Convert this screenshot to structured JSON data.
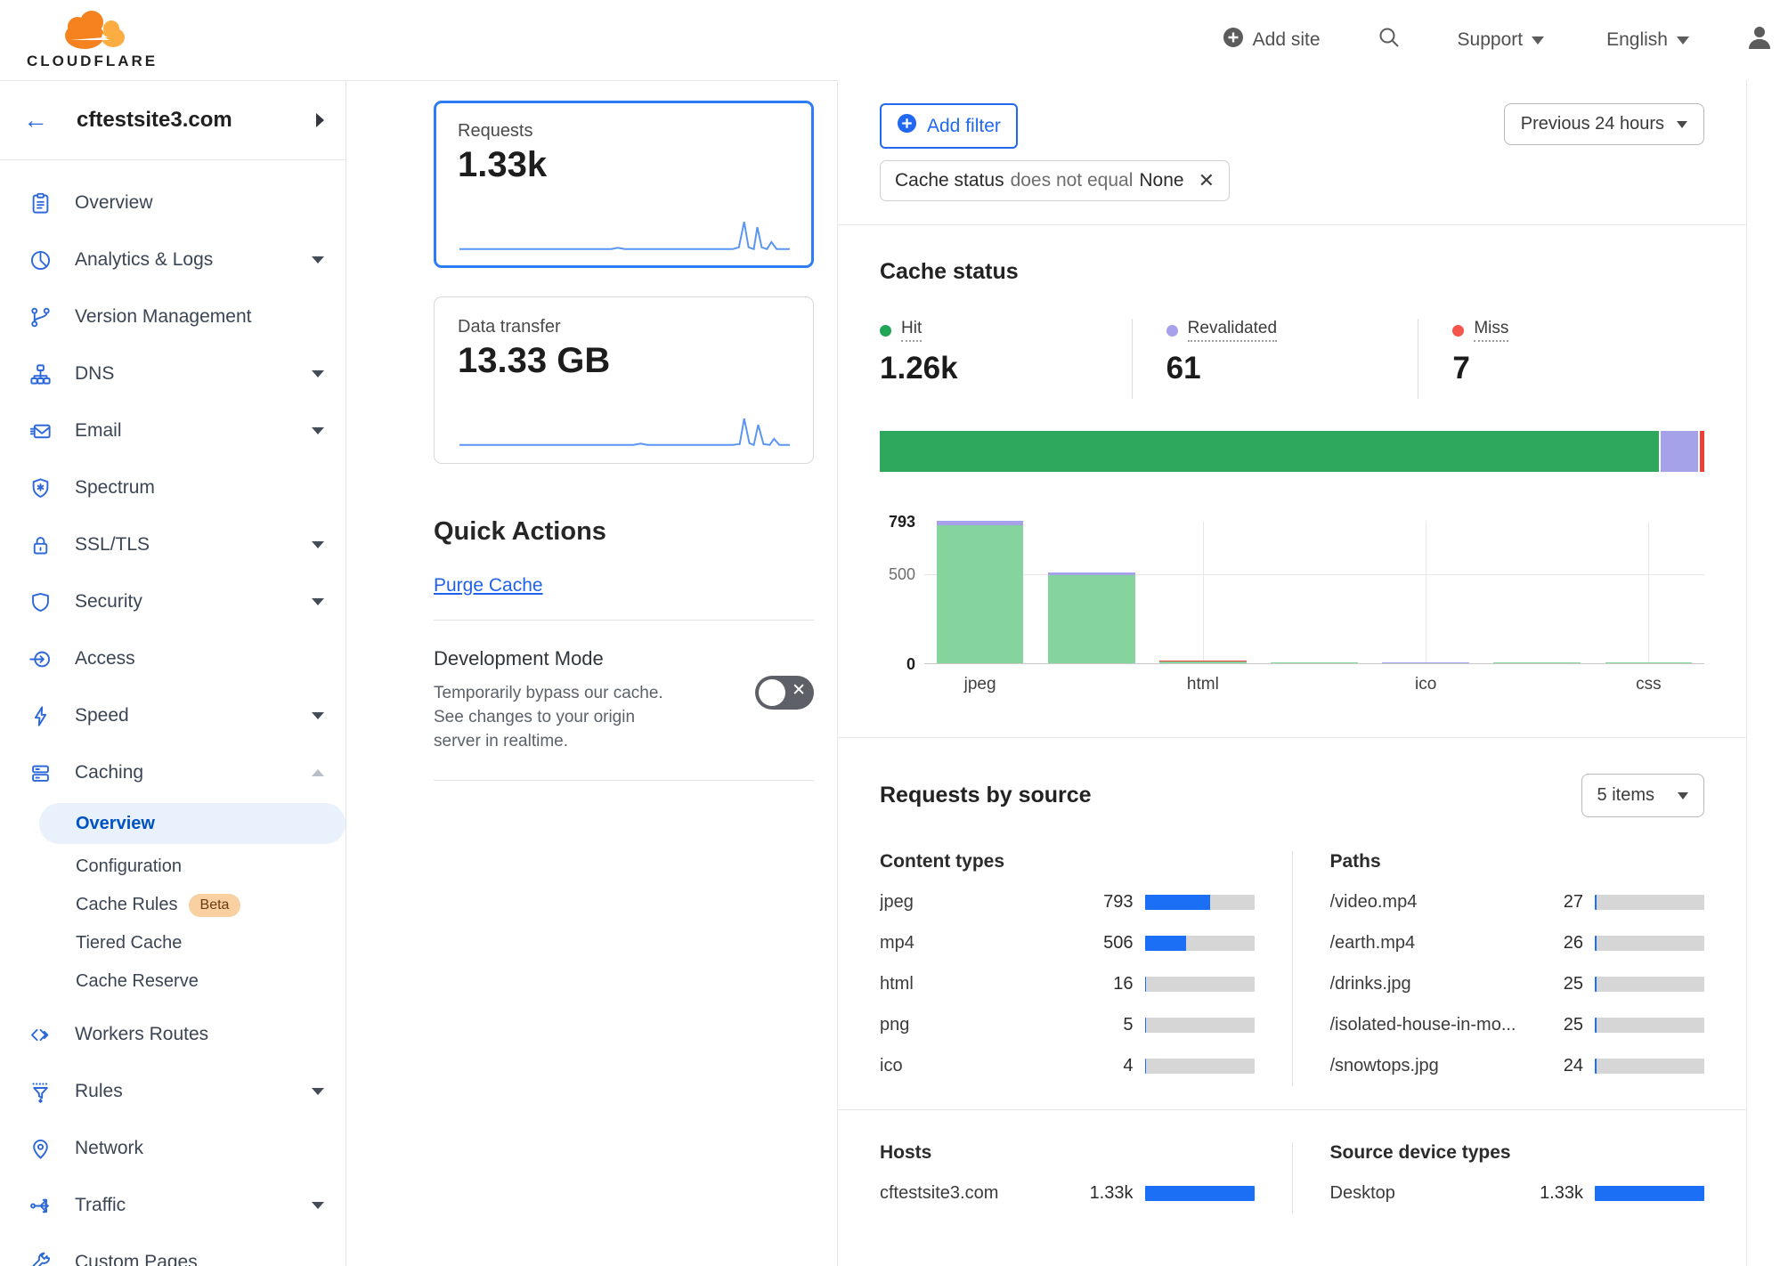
{
  "colors": {
    "accent": "#2268f0",
    "bar_blue": "#1a6ff5",
    "nav_icon": "#2c68d9",
    "selected_text": "#0051c3",
    "selected_bg": "#e8f1fc",
    "green": "#2da85c",
    "chart_green": "#85d49d",
    "purple": "#a5a2e9",
    "red": "#ee3f35",
    "hit_dot": "#21a657",
    "reval_dot": "#a5a2e9",
    "miss_dot": "#f2564d",
    "beta_bg": "#f8d0a2",
    "beta_text": "#6b3d10",
    "logo_orange": "#f6821f",
    "logo_light_orange": "#fbad41"
  },
  "header": {
    "logo_text": "CLOUDFLARE",
    "add_site_label": "Add site",
    "support_label": "Support",
    "language_label": "English"
  },
  "sidebar": {
    "site": "cftestsite3.com",
    "items": [
      {
        "label": "Overview",
        "icon": "clipboard-icon",
        "chevron": "none"
      },
      {
        "label": "Analytics & Logs",
        "icon": "pie-chart-icon",
        "chevron": "down"
      },
      {
        "label": "Version Management",
        "icon": "branch-icon",
        "chevron": "none"
      },
      {
        "label": "DNS",
        "icon": "hierarchy-icon",
        "chevron": "down"
      },
      {
        "label": "Email",
        "icon": "email-icon",
        "chevron": "down"
      },
      {
        "label": "Spectrum",
        "icon": "shield-badge-icon",
        "chevron": "none"
      },
      {
        "label": "SSL/TLS",
        "icon": "lock-icon",
        "chevron": "down"
      },
      {
        "label": "Security",
        "icon": "shield-icon",
        "chevron": "down"
      },
      {
        "label": "Access",
        "icon": "access-icon",
        "chevron": "none"
      },
      {
        "label": "Speed",
        "icon": "lightning-icon",
        "chevron": "down"
      },
      {
        "label": "Caching",
        "icon": "server-icon",
        "chevron": "up",
        "expanded": true,
        "children": [
          {
            "label": "Overview",
            "active": true
          },
          {
            "label": "Configuration"
          },
          {
            "label": "Cache Rules",
            "badge": "Beta"
          },
          {
            "label": "Tiered Cache"
          },
          {
            "label": "Cache Reserve"
          }
        ]
      },
      {
        "label": "Workers Routes",
        "icon": "code-brackets-icon",
        "chevron": "none"
      },
      {
        "label": "Rules",
        "icon": "funnel-icon",
        "chevron": "down"
      },
      {
        "label": "Network",
        "icon": "map-pin-icon",
        "chevron": "none"
      },
      {
        "label": "Traffic",
        "icon": "traffic-split-icon",
        "chevron": "down"
      },
      {
        "label": "Custom Pages",
        "icon": "wrench-icon",
        "chevron": "none"
      }
    ]
  },
  "metrics": {
    "requests": {
      "label": "Requests",
      "value": "1.33k"
    },
    "data_transfer": {
      "label": "Data transfer",
      "value": "13.33 GB"
    }
  },
  "quick_actions": {
    "title": "Quick Actions",
    "purge_cache_label": "Purge Cache",
    "dev_mode_title": "Development Mode",
    "dev_mode_desc": "Temporarily bypass our cache. See changes to your origin server in realtime."
  },
  "filters": {
    "add_filter_label": "Add filter",
    "chip": {
      "field": "Cache status",
      "operator": "does not equal",
      "value": "None"
    },
    "time_range": "Previous 24 hours"
  },
  "cache_status": {
    "title": "Cache status",
    "stats": [
      {
        "label": "Hit",
        "value": "1.26k",
        "num": 1260,
        "color": "#21a657",
        "seg_color": "#2da85c"
      },
      {
        "label": "Revalidated",
        "value": "61",
        "num": 61,
        "color": "#a5a2e9",
        "seg_color": "#a5a2e9"
      },
      {
        "label": "Miss",
        "value": "7",
        "num": 7,
        "color": "#f2564d",
        "seg_color": "#ee3f35"
      }
    ]
  },
  "chart_data": {
    "type": "bar",
    "stacked": true,
    "ylim": [
      0,
      793
    ],
    "yticks": [
      {
        "label": "793",
        "value": 793
      },
      {
        "label": "500",
        "value": 500
      },
      {
        "label": "0",
        "value": 0
      }
    ],
    "xtick_labels": [
      "jpeg",
      "",
      "html",
      "",
      "ico",
      "",
      "css"
    ],
    "slots": [
      {
        "label": "jpeg",
        "hit": 770,
        "revalidated": 23,
        "miss": 0
      },
      {
        "label": "",
        "hit": 490,
        "revalidated": 16,
        "miss": 0
      },
      {
        "label": "html",
        "hit": 9,
        "revalidated": 0,
        "miss": 7
      },
      {
        "label": "",
        "hit": 5,
        "revalidated": 0,
        "miss": 0
      },
      {
        "label": "ico",
        "hit": 0,
        "revalidated": 4,
        "miss": 0
      },
      {
        "label": "",
        "hit": 2,
        "revalidated": 0,
        "miss": 0
      },
      {
        "label": "css",
        "hit": 1,
        "revalidated": 0,
        "miss": 0
      }
    ]
  },
  "requests_by_source": {
    "title": "Requests by source",
    "items_dropdown": "5 items",
    "max_total": 1330,
    "tables_top": [
      {
        "header": "Content types",
        "rows": [
          {
            "label": "jpeg",
            "value": "793",
            "num": 793
          },
          {
            "label": "mp4",
            "value": "506",
            "num": 506
          },
          {
            "label": "html",
            "value": "16",
            "num": 16
          },
          {
            "label": "png",
            "value": "5",
            "num": 5
          },
          {
            "label": "ico",
            "value": "4",
            "num": 4
          }
        ]
      },
      {
        "header": "Paths",
        "rows": [
          {
            "label": "/video.mp4",
            "value": "27",
            "num": 27
          },
          {
            "label": "/earth.mp4",
            "value": "26",
            "num": 26
          },
          {
            "label": "/drinks.jpg",
            "value": "25",
            "num": 25
          },
          {
            "label": "/isolated-house-in-mo...",
            "value": "25",
            "num": 25
          },
          {
            "label": "/snowtops.jpg",
            "value": "24",
            "num": 24
          }
        ]
      }
    ],
    "tables_bottom": [
      {
        "header": "Hosts",
        "rows": [
          {
            "label": "cftestsite3.com",
            "value": "1.33k",
            "num": 1330
          }
        ]
      },
      {
        "header": "Source device types",
        "rows": [
          {
            "label": "Desktop",
            "value": "1.33k",
            "num": 1330
          }
        ]
      }
    ]
  }
}
